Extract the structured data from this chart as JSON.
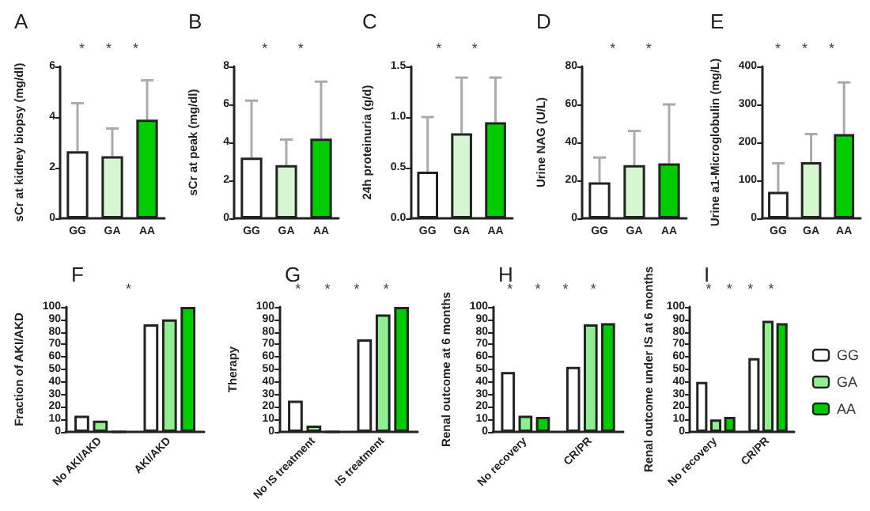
{
  "chart_data": [
    {
      "type": "bar",
      "title": "A",
      "ylabel": "sCr at kidney biopsy (mg/dl)",
      "categories": [
        "GG",
        "GA",
        "AA"
      ],
      "values": [
        2.65,
        2.45,
        3.9
      ],
      "colors": [
        "#ffffff",
        "#d4f7d0",
        "#00cc00"
      ],
      "errors": [
        [
          2.65,
          4.55
        ],
        [
          2.45,
          3.55
        ],
        [
          3.9,
          5.45
        ]
      ],
      "ylim": [
        0,
        6
      ],
      "yticks": [
        0,
        2,
        4,
        6
      ],
      "grid": false,
      "annotations": [
        "*",
        "*",
        "*"
      ]
    },
    {
      "type": "bar",
      "title": "B",
      "ylabel": "sCr at peak (mg/dl)",
      "categories": [
        "GG",
        "GA",
        "AA"
      ],
      "values": [
        3.2,
        2.8,
        4.2
      ],
      "colors": [
        "#ffffff",
        "#d4f7d0",
        "#00cc00"
      ],
      "errors": [
        [
          3.2,
          6.2
        ],
        [
          2.8,
          4.15
        ],
        [
          4.2,
          7.2
        ]
      ],
      "ylim": [
        0,
        8
      ],
      "yticks": [
        0,
        2,
        4,
        6,
        8
      ],
      "grid": false,
      "annotations": [
        "*",
        "*"
      ]
    },
    {
      "type": "bar",
      "title": "C",
      "ylabel": "24h proteinuria (g/d)",
      "categories": [
        "GG",
        "GA",
        "AA"
      ],
      "values": [
        0.46,
        0.84,
        0.95
      ],
      "colors": [
        "#ffffff",
        "#d4f7d0",
        "#00cc00"
      ],
      "errors": [
        [
          0.46,
          1.0
        ],
        [
          0.84,
          1.39
        ],
        [
          0.95,
          1.39
        ]
      ],
      "ylim": [
        0,
        1.5
      ],
      "yticks": [
        {
          "value": 0,
          "label": "0.0"
        },
        {
          "value": 0.5,
          "label": "0.5"
        },
        {
          "value": 1,
          "label": "1.0"
        },
        {
          "value": 1.5,
          "label": "1.5"
        }
      ],
      "grid": false,
      "annotations": [
        "*",
        "*"
      ]
    },
    {
      "type": "bar",
      "title": "D",
      "ylabel": "Urine NAG (U/L)",
      "categories": [
        "GG",
        "GA",
        "AA"
      ],
      "values": [
        19,
        28,
        29
      ],
      "colors": [
        "#ffffff",
        "#d4f7d0",
        "#00cc00"
      ],
      "errors": [
        [
          19,
          32
        ],
        [
          28,
          46
        ],
        [
          29,
          60
        ]
      ],
      "ylim": [
        0,
        80
      ],
      "yticks": [
        0,
        20,
        40,
        60,
        80
      ],
      "grid": false,
      "annotations": [
        "*",
        "*"
      ]
    },
    {
      "type": "bar",
      "title": "E",
      "ylabel": "Urine a1-Microglobulin (mg/L)",
      "categories": [
        "GG",
        "GA",
        "AA"
      ],
      "values": [
        70,
        148,
        222
      ],
      "colors": [
        "#ffffff",
        "#d4f7d0",
        "#00cc00"
      ],
      "errors": [
        [
          70,
          145
        ],
        [
          148,
          222
        ],
        [
          222,
          358
        ]
      ],
      "ylim": [
        0,
        400
      ],
      "yticks": [
        0,
        100,
        200,
        300,
        400
      ],
      "grid": false,
      "annotations": [
        "*",
        "*",
        "*"
      ]
    },
    {
      "type": "bar",
      "title": "F",
      "ylabel": "Fraction of AKI/AKD",
      "categories": [
        "No AKI/AKD",
        "AKI/AKD"
      ],
      "series": [
        {
          "color": "#ffffff",
          "values": [
            13,
            86
          ]
        },
        {
          "color": "#90ee90",
          "values": [
            9,
            90
          ]
        },
        {
          "color": "#00cc00",
          "values": [
            0,
            100
          ]
        }
      ],
      "ylim": [
        0,
        100
      ],
      "yticks": [
        0,
        10,
        20,
        30,
        40,
        50,
        60,
        70,
        80,
        90,
        100
      ],
      "grid": false,
      "annotations": [
        "*"
      ]
    },
    {
      "type": "bar",
      "title": "G",
      "ylabel": "Therapy",
      "categories": [
        "No IS treatment",
        "IS treatment"
      ],
      "series": [
        {
          "color": "#ffffff",
          "values": [
            25,
            74
          ]
        },
        {
          "color": "#90ee90",
          "values": [
            5,
            94
          ]
        },
        {
          "color": "#00cc00",
          "values": [
            0,
            100
          ]
        }
      ],
      "ylim": [
        0,
        100
      ],
      "yticks": [
        0,
        10,
        20,
        30,
        40,
        50,
        60,
        70,
        80,
        90,
        100
      ],
      "grid": false,
      "annotations": [
        "*",
        "*",
        "*",
        "*"
      ]
    },
    {
      "type": "bar",
      "title": "H",
      "ylabel": "Renal outcome at 6 months",
      "categories": [
        "No recovery",
        "CR/PR"
      ],
      "series": [
        {
          "color": "#ffffff",
          "values": [
            48,
            52
          ]
        },
        {
          "color": "#90ee90",
          "values": [
            13,
            86
          ]
        },
        {
          "color": "#00cc00",
          "values": [
            12,
            87
          ]
        }
      ],
      "ylim": [
        0,
        100
      ],
      "yticks": [
        0,
        10,
        20,
        30,
        40,
        50,
        60,
        70,
        80,
        90,
        100
      ],
      "grid": false,
      "annotations": [
        "*",
        "*",
        "*",
        "*"
      ]
    },
    {
      "type": "bar",
      "title": "I",
      "ylabel": "Renal outcome under IS at 6 months",
      "categories": [
        "No recovery",
        "CR/PR"
      ],
      "series": [
        {
          "name": "GG",
          "color": "#ffffff",
          "values": [
            40,
            59
          ]
        },
        {
          "name": "GA",
          "color": "#90ee90",
          "values": [
            10,
            89
          ]
        },
        {
          "name": "AA",
          "color": "#00cc00",
          "values": [
            12,
            87
          ]
        }
      ],
      "ylim": [
        0,
        100
      ],
      "yticks": [
        0,
        10,
        20,
        30,
        40,
        50,
        60,
        70,
        80,
        90,
        100
      ],
      "grid": false,
      "legend": "right",
      "annotations": [
        "*",
        "*",
        "*",
        "*"
      ]
    }
  ]
}
